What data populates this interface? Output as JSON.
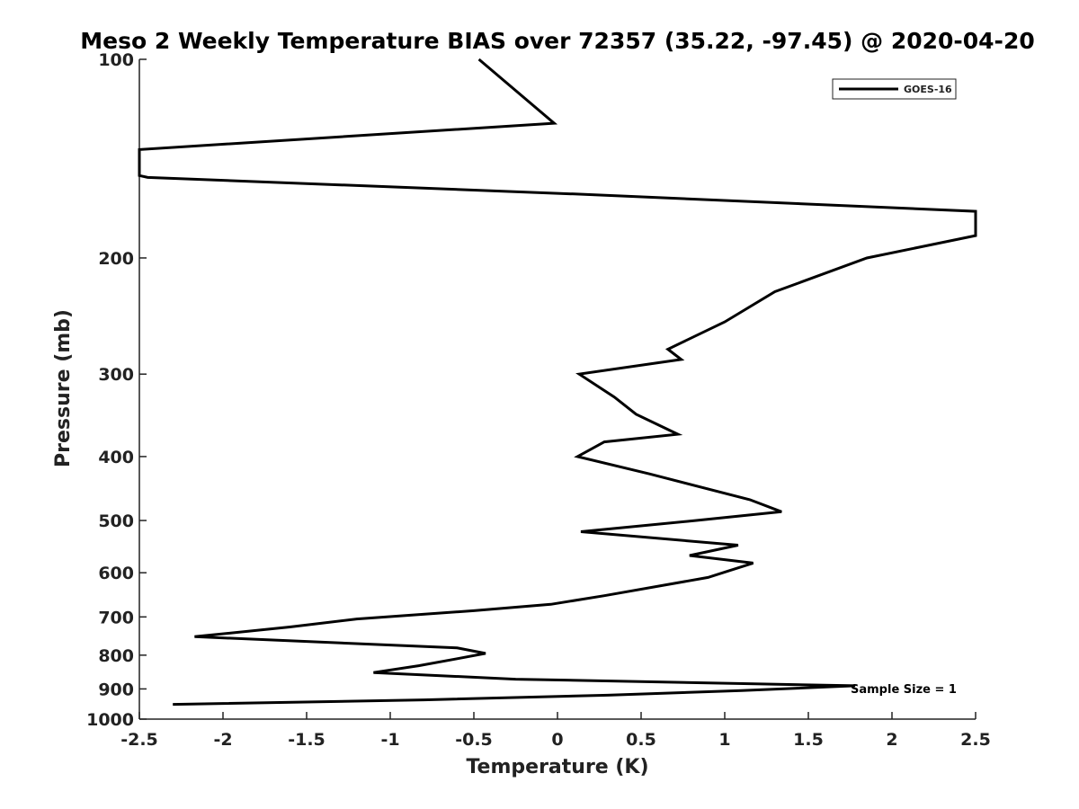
{
  "chart_data": {
    "type": "line",
    "title": "Meso 2 Weekly Temperature BIAS over 72357 (35.22, -97.45) @ 2020-04-20",
    "xlabel": "Temperature (K)",
    "ylabel": "Pressure (mb)",
    "xlim": [
      -2.5,
      2.5
    ],
    "ylim": [
      100,
      1000
    ],
    "y_scale": "log",
    "y_reversed": true,
    "x_ticks": [
      -2.5,
      -2,
      -1.5,
      -1,
      -0.5,
      0,
      0.5,
      1,
      1.5,
      2,
      2.5
    ],
    "x_tick_labels": [
      "-2.5",
      "-2",
      "-1.5",
      "-1",
      "-0.5",
      "0",
      "0.5",
      "1",
      "1.5",
      "2",
      "2.5"
    ],
    "y_ticks": [
      100,
      200,
      300,
      400,
      500,
      600,
      700,
      800,
      900,
      1000
    ],
    "y_tick_labels": [
      "100",
      "200",
      "300",
      "400",
      "500",
      "600",
      "700",
      "800",
      "900",
      "1000"
    ],
    "grid": false,
    "legend_position": "top-right",
    "annotation": "Sample Size = 1",
    "colors": {
      "line": "#000000",
      "axis": "#222222"
    },
    "series": [
      {
        "name": "GOES-16",
        "points": [
          {
            "x": -0.47,
            "y": 100
          },
          {
            "x": -0.02,
            "y": 125
          },
          {
            "x": -2.5,
            "y": 137
          },
          {
            "x": -2.5,
            "y": 150
          },
          {
            "x": -2.45,
            "y": 151
          },
          {
            "x": 0.1,
            "y": 160
          },
          {
            "x": 2.5,
            "y": 170
          },
          {
            "x": 2.5,
            "y": 185
          },
          {
            "x": 1.85,
            "y": 200
          },
          {
            "x": 1.3,
            "y": 225
          },
          {
            "x": 1.0,
            "y": 250
          },
          {
            "x": 0.66,
            "y": 275
          },
          {
            "x": 0.74,
            "y": 285
          },
          {
            "x": 0.13,
            "y": 300
          },
          {
            "x": 0.34,
            "y": 325
          },
          {
            "x": 0.47,
            "y": 345
          },
          {
            "x": 0.72,
            "y": 370
          },
          {
            "x": 0.28,
            "y": 380
          },
          {
            "x": 0.12,
            "y": 400
          },
          {
            "x": 0.55,
            "y": 425
          },
          {
            "x": 1.15,
            "y": 465
          },
          {
            "x": 1.34,
            "y": 485
          },
          {
            "x": 0.83,
            "y": 500
          },
          {
            "x": 0.14,
            "y": 520
          },
          {
            "x": 1.08,
            "y": 545
          },
          {
            "x": 0.79,
            "y": 565
          },
          {
            "x": 1.17,
            "y": 580
          },
          {
            "x": 0.9,
            "y": 610
          },
          {
            "x": 0.28,
            "y": 650
          },
          {
            "x": -0.04,
            "y": 670
          },
          {
            "x": -0.5,
            "y": 685
          },
          {
            "x": -1.2,
            "y": 705
          },
          {
            "x": -1.6,
            "y": 725
          },
          {
            "x": -2.17,
            "y": 750
          },
          {
            "x": -0.6,
            "y": 780
          },
          {
            "x": -0.43,
            "y": 795
          },
          {
            "x": -0.6,
            "y": 810
          },
          {
            "x": -0.83,
            "y": 830
          },
          {
            "x": -1.1,
            "y": 850
          },
          {
            "x": -0.25,
            "y": 870
          },
          {
            "x": 1.78,
            "y": 890
          },
          {
            "x": 1.1,
            "y": 905
          },
          {
            "x": 0.3,
            "y": 920
          },
          {
            "x": -0.8,
            "y": 935
          },
          {
            "x": -2.3,
            "y": 950
          }
        ]
      }
    ]
  }
}
